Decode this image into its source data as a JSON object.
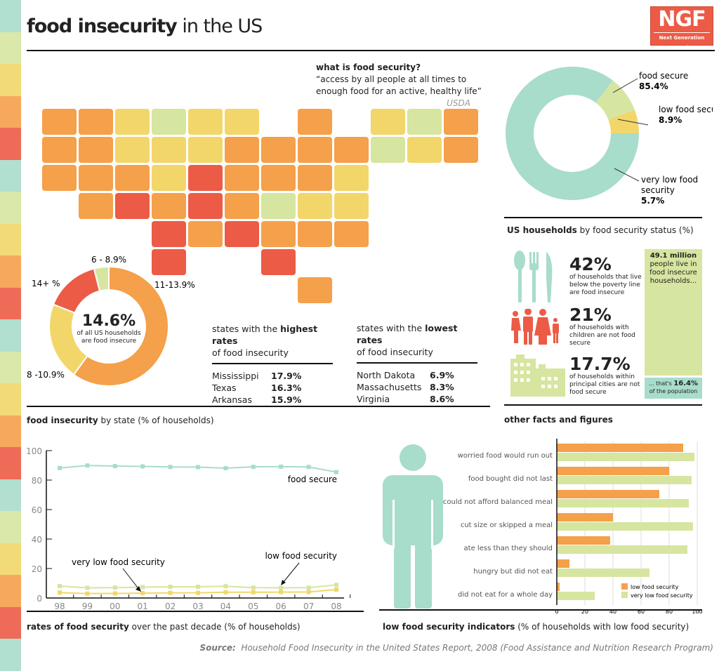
{
  "header": {
    "title_bold": "food insecurity",
    "title_rest": " in the US",
    "logo_big": "NGF",
    "logo_small": "Next Generation Food"
  },
  "colors": {
    "red": "#ec5b46",
    "orange": "#f5a04a",
    "yellow": "#f2d66a",
    "green": "#d6e5a0",
    "teal": "#a8dccb"
  },
  "quote": {
    "heading": "what is food security?",
    "text": "“access by all people at all times to enough food for an active, healthy life”",
    "source": "USDA"
  },
  "map": {
    "bins": [
      "6 - 8.9%",
      "8 -10.9%",
      "11-13.9%",
      "14+ %"
    ],
    "bin_colors": [
      "#d6e5a0",
      "#f2d66a",
      "#f5a04a",
      "#ec5b46"
    ],
    "state_bins": {
      "WA": 2,
      "ID": 2,
      "MT": 1,
      "ND": 0,
      "MN": 1,
      "WI": 1,
      "MI": 2,
      "VT": 1,
      "NH": 0,
      "ME": 2,
      "OR": 2,
      "NV": 2,
      "WY": 1,
      "SD": 1,
      "IA": 1,
      "IL": 2,
      "IN": 2,
      "OH": 2,
      "NY": 2,
      "MA": 0,
      "CT": 1,
      "RI": 2,
      "CA": 2,
      "UT": 2,
      "CO": 2,
      "NE": 1,
      "MO": 3,
      "KY": 2,
      "WV": 2,
      "PA": 2,
      "NJ": 1,
      "AZ": 2,
      "NM": 3,
      "KS": 2,
      "AR": 3,
      "TN": 2,
      "VA": 0,
      "MD": 1,
      "DE": 1,
      "OK": 3,
      "LA": 2,
      "MS": 3,
      "AL": 2,
      "NC": 2,
      "SC": 2,
      "TX": 3,
      "GA": 3,
      "FL": 2
    }
  },
  "state_donut": {
    "center_value": "14.6%",
    "center_text_1": "of all US households",
    "center_text_2": "are food insecure",
    "segments": [
      {
        "label": "11-13.9%",
        "share": 60,
        "color": "#f5a04a"
      },
      {
        "label": "8 -10.9%",
        "share": 21,
        "color": "#f2d66a"
      },
      {
        "label": "14+ %",
        "share": 15,
        "color": "#ec5b46"
      },
      {
        "label": "6 - 8.9%",
        "share": 4,
        "color": "#d6e5a0"
      }
    ]
  },
  "highest": {
    "heading_pre": "states with the ",
    "heading_bold": "highest rates",
    "heading_post": "of food insecurity",
    "rows": [
      {
        "state": "Mississippi",
        "value": "17.9%"
      },
      {
        "state": "Texas",
        "value": "16.3%"
      },
      {
        "state": "Arkansas",
        "value": "15.9%"
      }
    ]
  },
  "lowest": {
    "heading_pre": "states with the ",
    "heading_bold": "lowest rates",
    "heading_post": "of food insecurity",
    "rows": [
      {
        "state": "North Dakota",
        "value": "6.9%"
      },
      {
        "state": "Massachusetts",
        "value": "8.3%"
      },
      {
        "state": "Virginia",
        "value": "8.6%"
      }
    ]
  },
  "status_caption": {
    "bold": "US households",
    "rest": " by food security status (%)"
  },
  "by_state_caption": {
    "bold": "food insecurity",
    "rest": " by state (% of households)"
  },
  "other_caption": "other facts and figures",
  "stats": [
    {
      "value": "42%",
      "text": "of households that live below the poverty line are food insecure",
      "icon": "cutlery-icon"
    },
    {
      "value": "21%",
      "text": "of households with children are not food secure",
      "icon": "family-icon"
    },
    {
      "value": "17.7%",
      "text": "of households within principal cities are not food secure",
      "icon": "buildings-icon"
    }
  ],
  "population": {
    "bold": "49.1",
    "unit": " million",
    "text": "people live in food insecure households...",
    "bottom_pre": "... that's ",
    "bottom_bold": "16.4%",
    "bottom_post": "of the population"
  },
  "line_caption": {
    "bold": "rates of food security",
    "rest": " over the past decade (% of households)"
  },
  "bar_caption": {
    "bold": "low food security indicators",
    "rest": " (% of households with low food security)"
  },
  "source": {
    "label": "Source:",
    "text": "Household Food Insecurity in the United States Report, 2008 (Food Assistance and Nutrition Research Program)"
  },
  "chart_data": [
    {
      "type": "pie",
      "title": "",
      "values": [
        {
          "label": "food secure",
          "value": 85.4,
          "color": "#a8dccb"
        },
        {
          "label": "low food security",
          "value": 8.9,
          "color": "#d6e5a0"
        },
        {
          "label": "very low food security",
          "value": 5.7,
          "color": "#f2d66a"
        }
      ],
      "value_labels": [
        "85.4%",
        "8.9%",
        "5.7%"
      ]
    },
    {
      "type": "line",
      "x": [
        "98",
        "99",
        "00",
        "01",
        "02",
        "03",
        "04",
        "05",
        "06",
        "07",
        "08"
      ],
      "ylim": [
        0,
        100
      ],
      "yticks": [
        "0",
        "20",
        "40",
        "60",
        "80",
        "100"
      ],
      "series": [
        {
          "name": "food secure",
          "color": "#a8dccb",
          "values": [
            88.2,
            89.9,
            89.5,
            89.3,
            88.9,
            88.8,
            88.1,
            89.0,
            89.1,
            88.9,
            85.4
          ]
        },
        {
          "name": "low food security",
          "color": "#d6e5a0",
          "values": [
            8.1,
            6.9,
            7.0,
            7.4,
            7.6,
            7.6,
            8.0,
            7.0,
            6.9,
            7.0,
            8.9
          ]
        },
        {
          "name": "very low food security",
          "color": "#f2d66a",
          "values": [
            3.7,
            3.0,
            3.1,
            3.3,
            3.5,
            3.5,
            3.9,
            3.9,
            4.0,
            4.1,
            5.7
          ]
        }
      ]
    },
    {
      "type": "bar",
      "orientation": "horizontal",
      "xlim": [
        0,
        100
      ],
      "xticks": [
        "0",
        "20",
        "40",
        "60",
        "80",
        "100"
      ],
      "grid": true,
      "legend": "bottom-right",
      "categories": [
        "worried food would run out",
        "food bought did not last",
        "could not afford balanced meal",
        "cut size or skipped a meal",
        "ate less than they should",
        "hungry but did not eat",
        "did not eat for a whole day"
      ],
      "series": [
        {
          "name": "low food security",
          "color": "#f5a04a",
          "values": [
            90,
            80,
            73,
            40,
            38,
            9,
            2
          ]
        },
        {
          "name": "very low food security",
          "color": "#d6e5a0",
          "values": [
            98,
            96,
            94,
            97,
            93,
            66,
            27
          ]
        }
      ]
    }
  ]
}
